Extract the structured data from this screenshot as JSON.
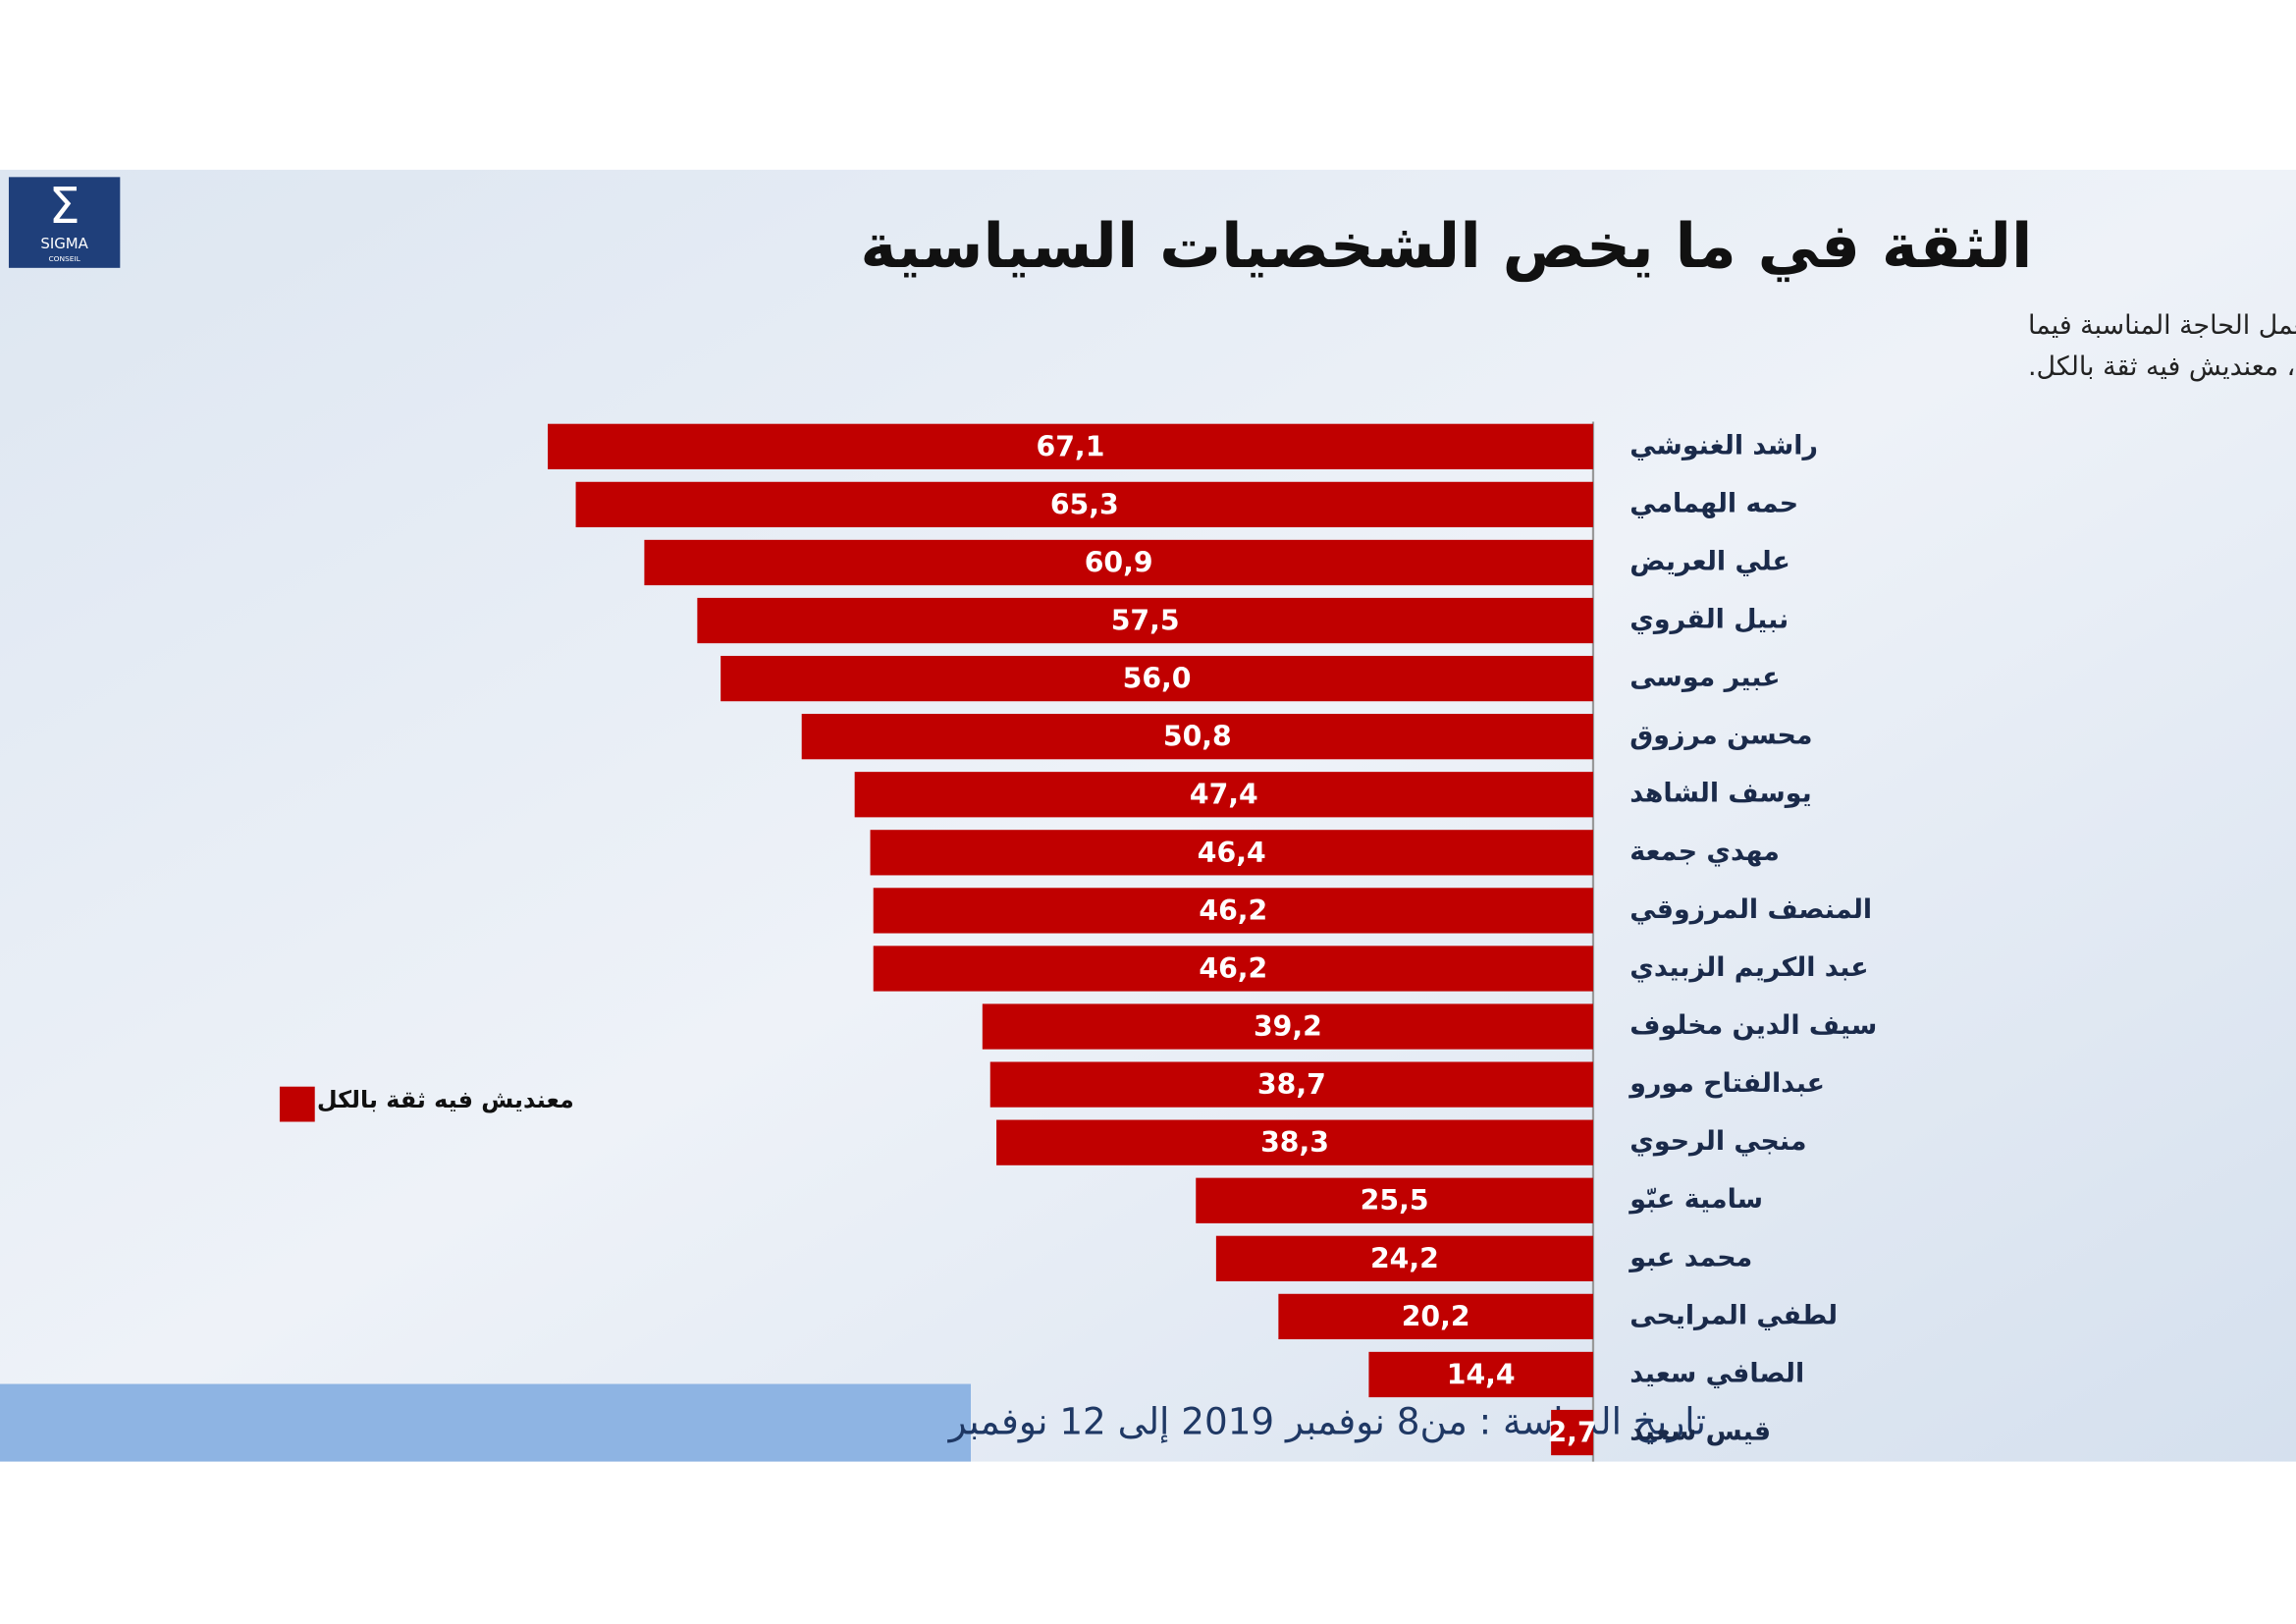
{
  "logo": {
    "name": "SIGMA",
    "sub": "CONSEIL"
  },
  "chart_data": {
    "type": "hbar",
    "title": "الثقة في ما يخص الشخصيات السياسية",
    "subtitle": [
      "من فضلك باش نعطيك مجموعة من القادة السياسيين و انت قلي بالنسبة لكل واحد ، قداش عندك فيه ثقة بش يعمل الحاجة المناسبة فيما",
      "يتعلق بالشؤون السياسية و ادارة البلاد؟ ثقة كبيرة، شوية ثقة، موش برشة ثقة، معنديش فيه ثقة بالكل."
    ],
    "categories": [
      "راشد الغنوشي",
      "حمه الهمامي",
      "علي العريض",
      "نبيل القروي",
      "عبير موسى",
      "محسن مرزوق",
      "يوسف الشاهد",
      "مهدي جمعة",
      "المنصف المرزوقي",
      "عبد الكريم الزبيدي",
      "سيف الدين مخلوف",
      "عبدالفتاح مورو",
      "منجي الرحوي",
      "سامية عبّو",
      "محمد عبو",
      "لطفي المرايحى",
      "الصافي سعيد",
      "قيس سعيد"
    ],
    "series": [
      {
        "name": "معنديش فيه ثقة بالكل",
        "color": "#c00000",
        "values": [
          67.1,
          65.3,
          60.9,
          57.5,
          56.0,
          50.8,
          47.4,
          46.4,
          46.2,
          46.2,
          39.2,
          38.7,
          38.3,
          25.5,
          24.2,
          20.2,
          14.4,
          2.7
        ],
        "value_labels": [
          "67,1",
          "65,3",
          "60,9",
          "57,5",
          "56,0",
          "50,8",
          "47,4",
          "46,4",
          "46,2",
          "46,2",
          "39,2",
          "38,7",
          "38,3",
          "25,5",
          "24,2",
          "20,2",
          "14,4",
          "2,7"
        ]
      }
    ],
    "xlim": [
      0,
      100
    ],
    "legend": "left"
  },
  "footer": "تاريخ الدراسة : من8  نوفمبر 2019 إلى 12 نوفمبر"
}
